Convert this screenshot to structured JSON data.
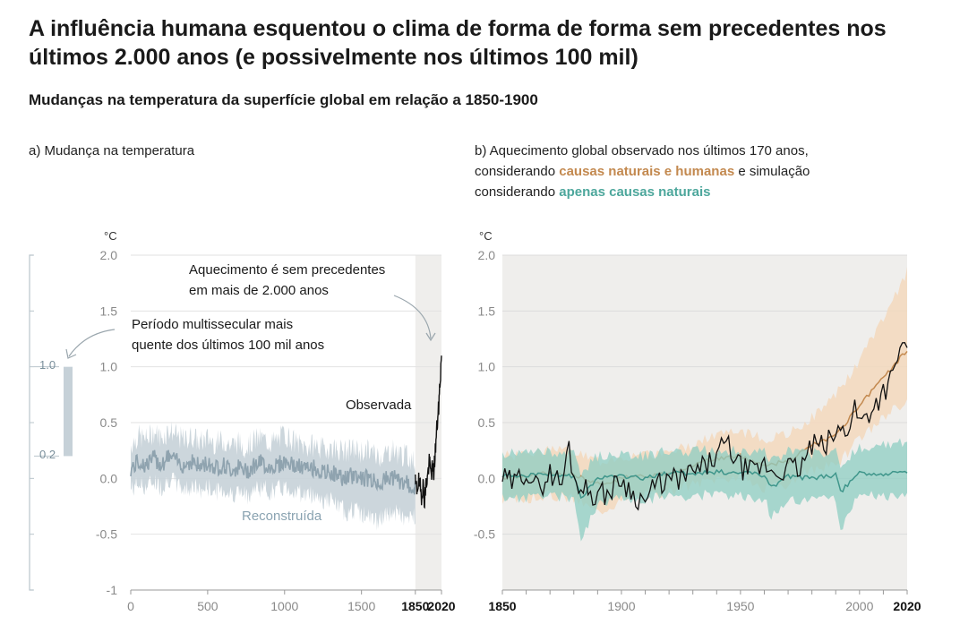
{
  "title": "A influência humana esquentou o clima de forma de forma sem precedentes nos últimos 2.000 anos (e possivelmente nos últimos 100 mil)",
  "subtitle": "Mudanças na temperatura da superfície global em relação a 1850-1900",
  "panel_a": {
    "label": "a) Mudança na temperatura",
    "unit": "°C",
    "annotation_unprecedented": [
      "Aquecimento é sem precedentes",
      "em mais de 2.000 anos"
    ],
    "annotation_multicentury": [
      "Período multissecular mais",
      "quente dos últimos 100 mil anos"
    ],
    "observed_label": "Observada",
    "reconstructed_label": "Reconstruída",
    "range_labels": {
      "top": "1.0",
      "bottom": "0.2"
    }
  },
  "panel_b": {
    "label_prefix": "b) Aquecimento global observado nos últimos 170 anos,",
    "label_line2_prefix": "considerando ",
    "label_brown": "causas naturais e humanas",
    "label_line2_suffix": " e simulação",
    "label_line3_prefix": "considerando ",
    "label_teal": "apenas causas naturais",
    "unit": "°C"
  },
  "colors": {
    "reconstruction": "#8fa3af",
    "reconstruction_band": "#c6d1d8",
    "observed": "#111111",
    "human_natural": "#c3894f",
    "human_natural_band": "#f3d8bd",
    "natural_only": "#3f968b",
    "natural_only_band": "#8ecdc3",
    "shade": "#efeeec"
  },
  "chart_data": [
    {
      "type": "line",
      "title": "a) Mudança na temperatura",
      "ylabel": "°C",
      "ylim": [
        -1,
        2
      ],
      "yticks": [
        "2.0",
        "1.5",
        "1.0",
        "0.5",
        "0.0",
        "-0.5",
        "-1"
      ],
      "xlim": [
        0,
        2020
      ],
      "xticks": [
        "0",
        "500",
        "1000",
        "1500",
        "1850",
        "2020"
      ],
      "bold_xticks": [
        "1850",
        "2020"
      ],
      "shaded_range": [
        1850,
        2020
      ],
      "multicentury_range": [
        0.2,
        1.0
      ],
      "series": [
        {
          "name": "Reconstruída",
          "x": [
            0,
            50,
            100,
            150,
            200,
            250,
            300,
            350,
            400,
            450,
            500,
            550,
            600,
            650,
            700,
            750,
            800,
            850,
            900,
            950,
            1000,
            1050,
            1100,
            1150,
            1200,
            1250,
            1300,
            1350,
            1400,
            1450,
            1500,
            1550,
            1600,
            1650,
            1700,
            1750,
            1800,
            1850
          ],
          "y": [
            0.08,
            0.15,
            0.12,
            0.18,
            0.13,
            0.2,
            0.15,
            0.12,
            0.16,
            0.1,
            0.14,
            0.1,
            0.12,
            0.08,
            0.1,
            0.06,
            0.12,
            0.14,
            0.1,
            0.12,
            0.15,
            0.12,
            0.1,
            0.08,
            0.1,
            0.04,
            0.06,
            0.02,
            0.0,
            0.03,
            0.01,
            0.0,
            -0.04,
            -0.02,
            0.02,
            -0.03,
            -0.05,
            -0.1
          ],
          "lower": [
            -0.1,
            -0.05,
            -0.08,
            -0.02,
            -0.08,
            0.0,
            -0.05,
            -0.1,
            -0.06,
            -0.12,
            -0.08,
            -0.12,
            -0.1,
            -0.14,
            -0.12,
            -0.16,
            -0.1,
            -0.08,
            -0.12,
            -0.1,
            -0.08,
            -0.1,
            -0.13,
            -0.15,
            -0.14,
            -0.2,
            -0.2,
            -0.26,
            -0.3,
            -0.28,
            -0.32,
            -0.35,
            -0.38,
            -0.35,
            -0.3,
            -0.33,
            -0.38,
            -0.32
          ],
          "upper": [
            0.3,
            0.38,
            0.35,
            0.42,
            0.36,
            0.44,
            0.38,
            0.34,
            0.38,
            0.32,
            0.36,
            0.32,
            0.34,
            0.3,
            0.32,
            0.28,
            0.34,
            0.36,
            0.32,
            0.34,
            0.4,
            0.34,
            0.3,
            0.28,
            0.3,
            0.26,
            0.28,
            0.26,
            0.24,
            0.26,
            0.24,
            0.25,
            0.2,
            0.22,
            0.26,
            0.22,
            0.2,
            0.14
          ]
        },
        {
          "name": "Observada",
          "x": [
            1850,
            1860,
            1870,
            1880,
            1890,
            1900,
            1910,
            1920,
            1930,
            1940,
            1950,
            1960,
            1970,
            1980,
            1990,
            2000,
            2010,
            2020
          ],
          "y": [
            -0.05,
            -0.1,
            -0.02,
            -0.08,
            -0.15,
            -0.05,
            -0.2,
            -0.05,
            0.02,
            0.15,
            0.05,
            0.08,
            0.05,
            0.25,
            0.45,
            0.6,
            0.85,
            1.1
          ]
        }
      ]
    },
    {
      "type": "line",
      "ylabel": "°C",
      "ylim": [
        -1,
        2
      ],
      "yticks": [
        "2.0",
        "1.5",
        "1.0",
        "0.5",
        "0.0",
        "-0.5"
      ],
      "xlim": [
        1850,
        2020
      ],
      "xticks": [
        "1850",
        "1900",
        "1950",
        "2000",
        "2020"
      ],
      "bold_xticks": [
        "1850",
        "2020"
      ],
      "series": [
        {
          "name": "causas naturais e humanas",
          "x": [
            1850,
            1860,
            1870,
            1880,
            1890,
            1900,
            1910,
            1920,
            1930,
            1940,
            1950,
            1960,
            1970,
            1980,
            1990,
            2000,
            2010,
            2020
          ],
          "y": [
            0.0,
            0.02,
            0.05,
            0.03,
            -0.05,
            0.0,
            0.02,
            0.05,
            0.12,
            0.18,
            0.2,
            0.12,
            0.15,
            0.3,
            0.38,
            0.65,
            0.9,
            1.15
          ],
          "lower": [
            -0.2,
            -0.18,
            -0.15,
            -0.18,
            -0.3,
            -0.2,
            -0.15,
            -0.12,
            -0.05,
            0.0,
            0.02,
            -0.1,
            -0.05,
            0.08,
            0.12,
            0.35,
            0.55,
            0.7
          ],
          "upper": [
            0.2,
            0.22,
            0.25,
            0.24,
            0.15,
            0.2,
            0.2,
            0.25,
            0.3,
            0.4,
            0.42,
            0.35,
            0.4,
            0.55,
            0.75,
            1.05,
            1.45,
            1.85
          ]
        },
        {
          "name": "apenas causas naturais",
          "x": [
            1850,
            1860,
            1870,
            1880,
            1883,
            1890,
            1900,
            1910,
            1920,
            1930,
            1940,
            1950,
            1960,
            1963,
            1970,
            1980,
            1990,
            1992,
            2000,
            2010,
            2020
          ],
          "y": [
            0.02,
            0.03,
            0.04,
            0.02,
            -0.18,
            0.0,
            0.02,
            0.0,
            0.05,
            0.04,
            0.06,
            0.05,
            0.03,
            -0.08,
            0.02,
            0.0,
            0.03,
            -0.12,
            0.05,
            0.04,
            0.05
          ],
          "lower": [
            -0.18,
            -0.17,
            -0.15,
            -0.18,
            -0.55,
            -0.22,
            -0.17,
            -0.2,
            -0.14,
            -0.16,
            -0.14,
            -0.15,
            -0.18,
            -0.35,
            -0.18,
            -0.2,
            -0.18,
            -0.45,
            -0.15,
            -0.17,
            -0.16
          ],
          "upper": [
            0.22,
            0.23,
            0.24,
            0.22,
            0.05,
            0.2,
            0.22,
            0.2,
            0.25,
            0.24,
            0.26,
            0.25,
            0.24,
            0.15,
            0.24,
            0.22,
            0.25,
            0.12,
            0.28,
            0.3,
            0.32
          ]
        },
        {
          "name": "Observada",
          "x": [
            1850,
            1855,
            1860,
            1865,
            1870,
            1875,
            1878,
            1880,
            1885,
            1890,
            1895,
            1900,
            1905,
            1910,
            1915,
            1920,
            1925,
            1930,
            1935,
            1940,
            1944,
            1950,
            1955,
            1960,
            1965,
            1970,
            1975,
            1980,
            1985,
            1990,
            1995,
            1998,
            2000,
            2005,
            2010,
            2015,
            2016,
            2020
          ],
          "y": [
            0.0,
            -0.05,
            0.08,
            -0.1,
            0.05,
            -0.05,
            0.3,
            0.0,
            -0.1,
            -0.15,
            -0.12,
            0.0,
            -0.15,
            -0.2,
            -0.05,
            -0.02,
            0.0,
            0.05,
            0.1,
            0.2,
            0.32,
            0.1,
            0.05,
            0.12,
            0.05,
            0.1,
            0.08,
            0.3,
            0.28,
            0.4,
            0.45,
            0.65,
            0.5,
            0.62,
            0.78,
            0.95,
            1.1,
            1.25
          ]
        }
      ]
    }
  ]
}
